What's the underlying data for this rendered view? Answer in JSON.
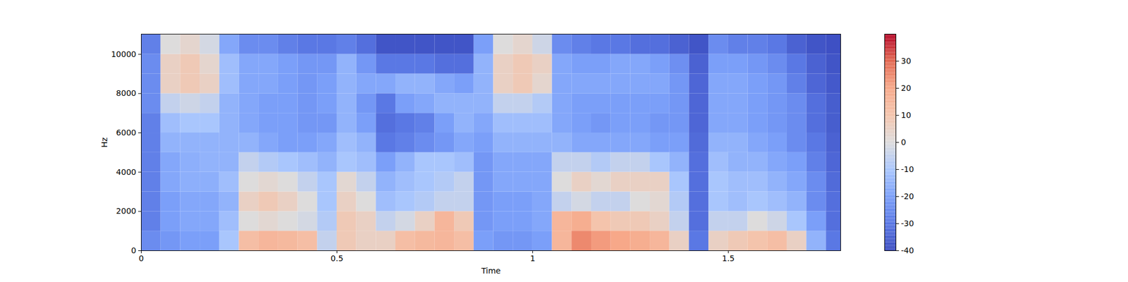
{
  "chart_data": {
    "type": "heatmap",
    "xlabel": "Time",
    "ylabel": "Hz",
    "xlim": [
      0,
      1.787
    ],
    "ylim": [
      0,
      11025
    ],
    "xticks": [
      0,
      0.5,
      1,
      1.5
    ],
    "yticks": [
      0,
      2000,
      4000,
      6000,
      8000,
      10000
    ],
    "x_bins": [
      0,
      0.05,
      0.1,
      0.15,
      0.2,
      0.25,
      0.3,
      0.35,
      0.4,
      0.45,
      0.5,
      0.55,
      0.6,
      0.65,
      0.7,
      0.75,
      0.8,
      0.85,
      0.9,
      0.95,
      1,
      1.05,
      1.1,
      1.15,
      1.2,
      1.25,
      1.3,
      1.35,
      1.4,
      1.45,
      1.5,
      1.55,
      1.6,
      1.65,
      1.7,
      1.75,
      1.8
    ],
    "y_bins": [
      0,
      1000,
      2000,
      3000,
      4000,
      5000,
      6000,
      7000,
      8000,
      9000,
      10000,
      11025
    ],
    "values": [
      [
        -25,
        -22,
        -20,
        -20,
        -10,
        12,
        15,
        14,
        12,
        -5,
        8,
        5,
        5,
        12,
        14,
        15,
        12,
        -20,
        -22,
        -22,
        -20,
        15,
        25,
        22,
        20,
        18,
        15,
        5,
        -30,
        5,
        8,
        10,
        12,
        5,
        -15,
        -30
      ],
      [
        -28,
        -20,
        -18,
        -18,
        -12,
        0,
        2,
        0,
        -2,
        -8,
        8,
        5,
        -5,
        -2,
        5,
        15,
        8,
        -22,
        -20,
        -20,
        -18,
        15,
        18,
        10,
        8,
        8,
        5,
        -5,
        -32,
        -5,
        -5,
        0,
        -3,
        -10,
        -20,
        -32
      ],
      [
        -28,
        -20,
        -18,
        -18,
        -15,
        5,
        8,
        5,
        0,
        -10,
        5,
        0,
        -12,
        -10,
        -8,
        -5,
        -5,
        -22,
        -20,
        -20,
        -18,
        -5,
        -2,
        -5,
        -5,
        0,
        2,
        -8,
        -32,
        -10,
        -12,
        -10,
        -12,
        -15,
        -25,
        -32
      ],
      [
        -28,
        -18,
        -16,
        -16,
        -12,
        0,
        2,
        0,
        -5,
        -10,
        2,
        -5,
        -15,
        -12,
        -10,
        -8,
        -5,
        -22,
        -18,
        -18,
        -18,
        0,
        5,
        2,
        5,
        5,
        5,
        -10,
        -32,
        -10,
        -12,
        -12,
        -15,
        -18,
        -25,
        -33
      ],
      [
        -28,
        -18,
        -16,
        -15,
        -15,
        -5,
        -8,
        -10,
        -12,
        -15,
        -10,
        -12,
        -20,
        -15,
        -10,
        -10,
        -12,
        -22,
        -18,
        -18,
        -18,
        -5,
        -5,
        -8,
        -5,
        -5,
        -10,
        -15,
        -32,
        -12,
        -15,
        -15,
        -18,
        -20,
        -28,
        -34
      ],
      [
        -28,
        -15,
        -15,
        -15,
        -15,
        -15,
        -18,
        -20,
        -20,
        -18,
        -12,
        -15,
        -30,
        -28,
        -25,
        -22,
        -18,
        -20,
        -15,
        -15,
        -15,
        -15,
        -18,
        -18,
        -18,
        -18,
        -20,
        -20,
        -33,
        -15,
        -15,
        -18,
        -20,
        -25,
        -30,
        -35
      ],
      [
        -28,
        -12,
        -10,
        -10,
        -15,
        -18,
        -20,
        -20,
        -22,
        -22,
        -15,
        -20,
        -32,
        -30,
        -28,
        -20,
        -15,
        -18,
        -12,
        -12,
        -12,
        -18,
        -20,
        -22,
        -20,
        -20,
        -22,
        -22,
        -34,
        -18,
        -18,
        -20,
        -22,
        -25,
        -32,
        -36
      ],
      [
        -25,
        -5,
        -3,
        -5,
        -15,
        -18,
        -20,
        -20,
        -22,
        -20,
        -15,
        -22,
        -30,
        -20,
        -18,
        -15,
        -15,
        -15,
        -5,
        -5,
        -8,
        -18,
        -20,
        -20,
        -20,
        -20,
        -20,
        -22,
        -34,
        -18,
        -18,
        -20,
        -22,
        -25,
        -32,
        -36
      ],
      [
        -25,
        5,
        8,
        5,
        -12,
        -18,
        -18,
        -20,
        -22,
        -20,
        -15,
        -18,
        -18,
        -15,
        -15,
        -18,
        -20,
        -15,
        5,
        8,
        3,
        -18,
        -18,
        -18,
        -18,
        -18,
        -18,
        -22,
        -34,
        -18,
        -18,
        -20,
        -22,
        -28,
        -34,
        -37
      ],
      [
        -25,
        5,
        8,
        3,
        -12,
        -18,
        -18,
        -20,
        -22,
        -22,
        -15,
        -22,
        -30,
        -30,
        -30,
        -32,
        -32,
        -15,
        5,
        8,
        5,
        -18,
        -20,
        -20,
        -18,
        -18,
        -20,
        -24,
        -35,
        -20,
        -20,
        -22,
        -25,
        -30,
        -35,
        -38
      ],
      [
        -28,
        0,
        3,
        -2,
        -18,
        -25,
        -25,
        -28,
        -30,
        -30,
        -28,
        -32,
        -38,
        -38,
        -38,
        -38,
        -38,
        -20,
        0,
        3,
        -3,
        -25,
        -28,
        -30,
        -30,
        -32,
        -32,
        -35,
        -38,
        -25,
        -28,
        -28,
        -30,
        -35,
        -38,
        -39
      ]
    ],
    "colorbar": {
      "range": [
        -40,
        40
      ],
      "ticks": [
        -40,
        -30,
        -20,
        -10,
        0,
        10,
        20,
        30
      ]
    }
  }
}
